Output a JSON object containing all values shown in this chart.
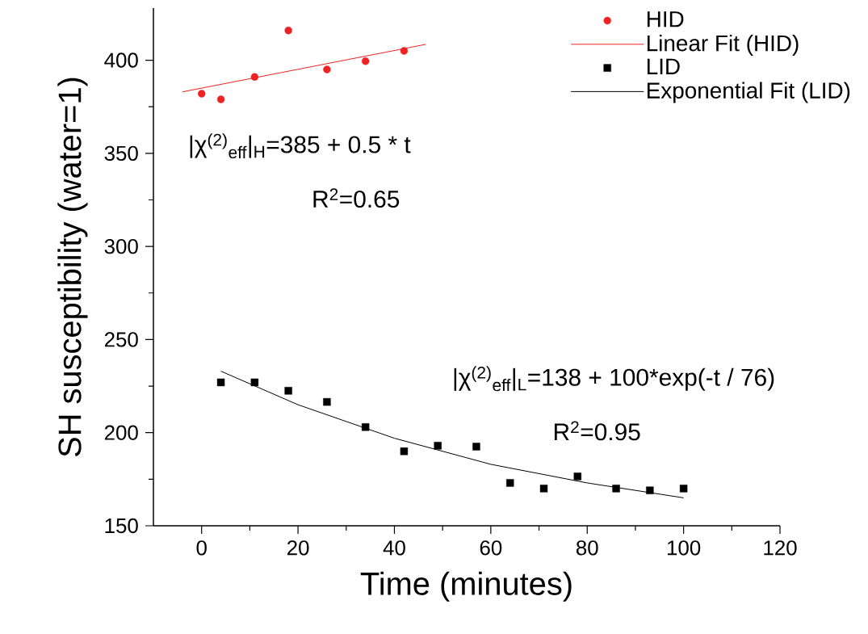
{
  "chart_data": {
    "type": "scatter",
    "xlabel": "Time (minutes)",
    "ylabel": "SH susceptibility (water=1)",
    "xlim": [
      -10,
      120
    ],
    "ylim": [
      150,
      428
    ],
    "xticks": [
      0,
      20,
      40,
      60,
      80,
      100,
      120
    ],
    "yticks": [
      150,
      200,
      250,
      300,
      350,
      400
    ],
    "legend": "top right",
    "grid": false,
    "series": [
      {
        "name": "HID",
        "type": "scatter",
        "marker": "circle",
        "color": "#ee2222",
        "x": [
          0,
          4,
          11,
          18,
          26,
          34,
          42
        ],
        "values": [
          382,
          379,
          391,
          416,
          395,
          399.5,
          405
        ]
      },
      {
        "name": "Linear Fit (HID)",
        "type": "line",
        "marker": "none",
        "color": "#ee2222",
        "x": [
          -4,
          46.5
        ],
        "values": [
          383,
          408.5
        ]
      },
      {
        "name": "LID",
        "type": "scatter",
        "marker": "square",
        "color": "#000000",
        "x": [
          4,
          11,
          18,
          26,
          34,
          42,
          49,
          57,
          64,
          71,
          78,
          86,
          93,
          100
        ],
        "values": [
          227,
          227,
          222.5,
          216.5,
          203,
          190,
          193,
          192.5,
          173,
          170,
          176.5,
          170,
          169,
          170
        ]
      },
      {
        "name": "Exponential Fit (LID)",
        "type": "line",
        "marker": "none",
        "color": "#000000",
        "x": [
          4,
          20,
          40,
          60,
          80,
          100
        ],
        "values": [
          233,
          215,
          197,
          183,
          173,
          165
        ]
      }
    ],
    "annotations": [
      "|χ$^{(2)}$$_{eff}$|$_{H}$=385 + 0.5 * t",
      "R$^{2}$=0.65",
      "|χ$^{(2)}$$_{eff}$|$_{L}$=138 + 100*exp(-t / 76)",
      "R$^{2}$=0.95"
    ]
  }
}
